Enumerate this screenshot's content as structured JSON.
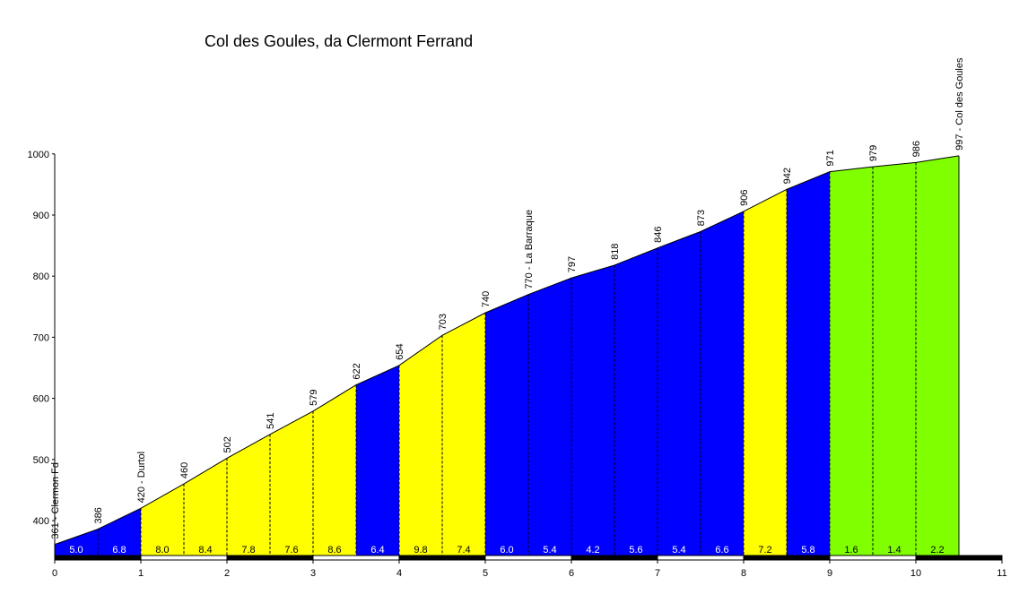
{
  "chart_data": {
    "type": "area",
    "title": "Col des Goules, da Clermont Ferrand",
    "xlim": [
      0,
      11
    ],
    "ylim": [
      340,
      1000
    ],
    "x_ticks": [
      0,
      1,
      2,
      3,
      4,
      5,
      6,
      7,
      8,
      9,
      10,
      11
    ],
    "y_ticks": [
      400,
      500,
      600,
      700,
      800,
      900,
      1000
    ],
    "points": [
      {
        "x": 0,
        "y": 361,
        "label": "361 - Clermon Fd"
      },
      {
        "x": 0.5,
        "y": 386,
        "label": "386"
      },
      {
        "x": 1,
        "y": 420,
        "label": "420 - Durtol"
      },
      {
        "x": 1.5,
        "y": 460,
        "label": "460"
      },
      {
        "x": 2,
        "y": 502,
        "label": "502"
      },
      {
        "x": 2.5,
        "y": 541,
        "label": "541"
      },
      {
        "x": 3,
        "y": 579,
        "label": "579"
      },
      {
        "x": 3.5,
        "y": 622,
        "label": "622"
      },
      {
        "x": 4,
        "y": 654,
        "label": "654"
      },
      {
        "x": 4.5,
        "y": 703,
        "label": "703"
      },
      {
        "x": 5,
        "y": 740,
        "label": "740"
      },
      {
        "x": 5.5,
        "y": 770,
        "label": "770 - La Barraque"
      },
      {
        "x": 6,
        "y": 797,
        "label": "797"
      },
      {
        "x": 6.5,
        "y": 818,
        "label": "818"
      },
      {
        "x": 7,
        "y": 846,
        "label": "846"
      },
      {
        "x": 7.5,
        "y": 873,
        "label": "873"
      },
      {
        "x": 8,
        "y": 906,
        "label": "906"
      },
      {
        "x": 8.5,
        "y": 942,
        "label": "942"
      },
      {
        "x": 9,
        "y": 971,
        "label": "971"
      },
      {
        "x": 9.5,
        "y": 979,
        "label": "979"
      },
      {
        "x": 10,
        "y": 986,
        "label": "986"
      },
      {
        "x": 10.5,
        "y": 997,
        "label": "997 - Col des Goules"
      }
    ],
    "segments": [
      {
        "grade": "5.0",
        "color": "#0000ff"
      },
      {
        "grade": "6.8",
        "color": "#0000ff"
      },
      {
        "grade": "8.0",
        "color": "#ffff00"
      },
      {
        "grade": "8.4",
        "color": "#ffff00"
      },
      {
        "grade": "7.8",
        "color": "#ffff00"
      },
      {
        "grade": "7.6",
        "color": "#ffff00"
      },
      {
        "grade": "8.6",
        "color": "#ffff00"
      },
      {
        "grade": "6.4",
        "color": "#0000ff"
      },
      {
        "grade": "9.8",
        "color": "#ffff00"
      },
      {
        "grade": "7.4",
        "color": "#ffff00"
      },
      {
        "grade": "6.0",
        "color": "#0000ff"
      },
      {
        "grade": "5.4",
        "color": "#0000ff"
      },
      {
        "grade": "4.2",
        "color": "#0000ff"
      },
      {
        "grade": "5.6",
        "color": "#0000ff"
      },
      {
        "grade": "5.4",
        "color": "#0000ff"
      },
      {
        "grade": "6.6",
        "color": "#0000ff"
      },
      {
        "grade": "7.2",
        "color": "#ffff00"
      },
      {
        "grade": "5.8",
        "color": "#0000ff"
      },
      {
        "grade": "1.6",
        "color": "#80ff00"
      },
      {
        "grade": "1.4",
        "color": "#80ff00"
      },
      {
        "grade": "2.2",
        "color": "#80ff00"
      }
    ]
  }
}
